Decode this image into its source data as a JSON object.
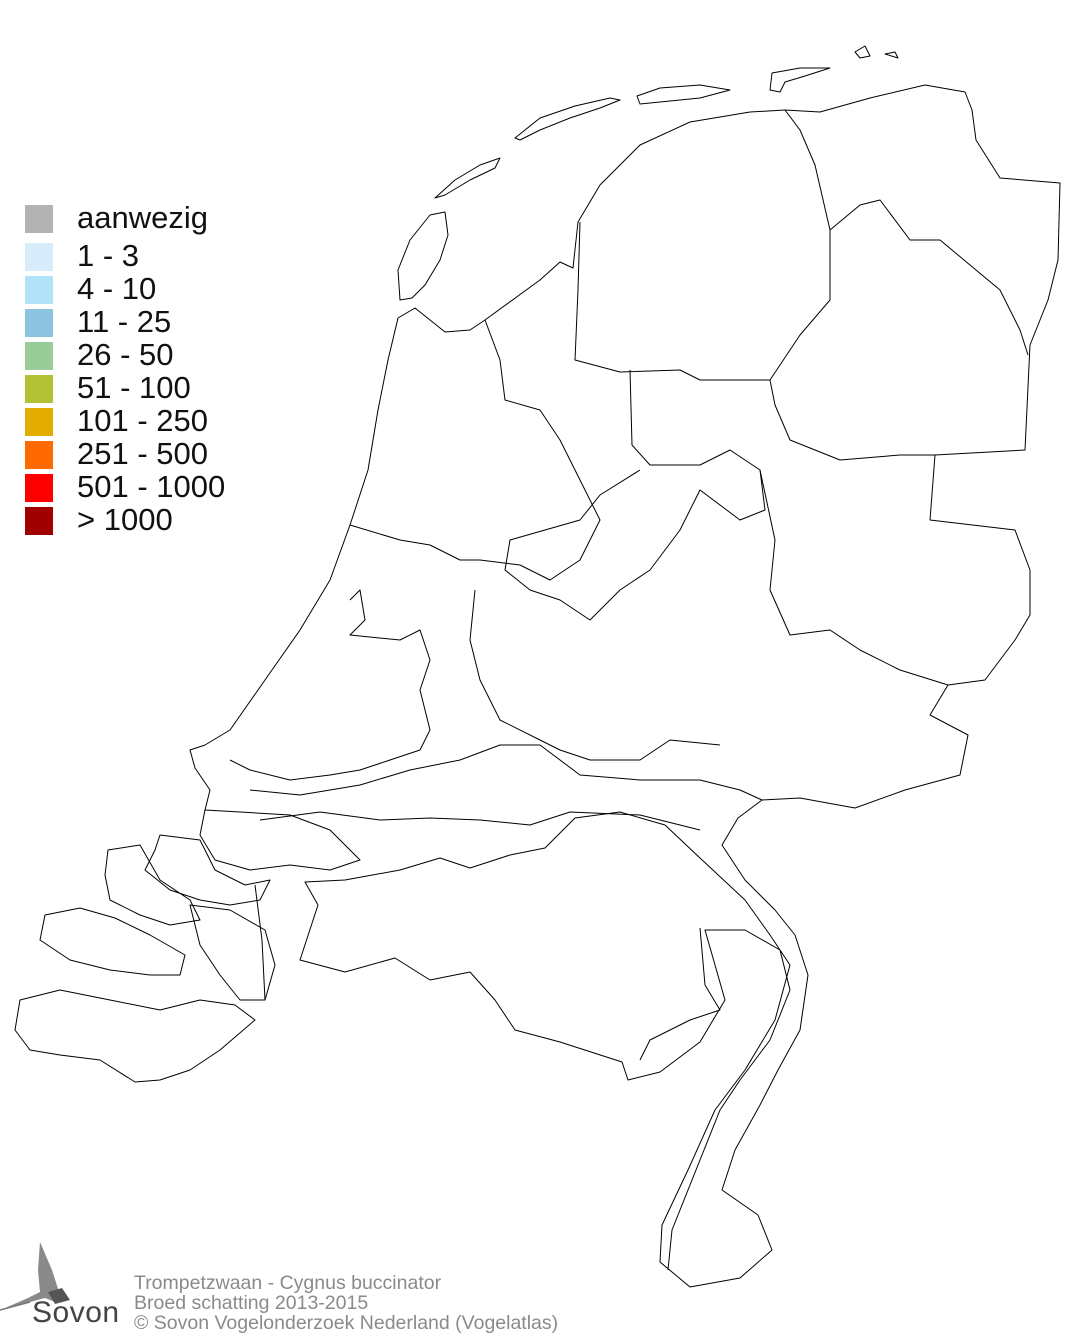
{
  "legend": {
    "items": [
      {
        "label": "aanwezig",
        "color": "#b3b3b3"
      },
      {
        "label": "1 - 3",
        "color": "#d6ecfa"
      },
      {
        "label": "4 - 10",
        "color": "#b3e3f9"
      },
      {
        "label": "11 - 25",
        "color": "#8cc4e0"
      },
      {
        "label": "26 - 50",
        "color": "#99cc99"
      },
      {
        "label": "51 - 100",
        "color": "#b2c235"
      },
      {
        "label": "101 - 250",
        "color": "#e2ad00"
      },
      {
        "label": "251 - 500",
        "color": "#ff6a00"
      },
      {
        "label": "501 - 1000",
        "color": "#ff0000"
      },
      {
        "label": "> 1000",
        "color": "#a10000"
      }
    ]
  },
  "footer": {
    "species": "Trompetzwaan - Cygnus buccinator",
    "subtitle": "Broed schatting 2013-2015",
    "copyright": "© Sovon Vogelonderzoek Nederland (Vogelatlas)"
  },
  "logo": {
    "text": "Sovon"
  },
  "map": {
    "fill": "#ffffff",
    "stroke": "#000000"
  }
}
